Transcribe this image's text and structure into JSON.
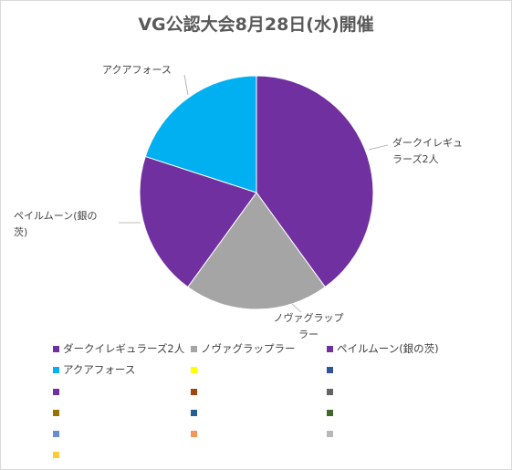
{
  "chart_data": {
    "type": "pie",
    "title": "VG公認大会8月28日(水)開催",
    "slices": [
      {
        "label": "ダークイレギュラーズ2人",
        "value": 2,
        "color": "#7030a0"
      },
      {
        "label": "ノヴァグラップラー",
        "value": 1,
        "color": "#a5a5a5"
      },
      {
        "label": "ペイルムーン(銀の茨)",
        "value": 1,
        "color": "#7030a0"
      },
      {
        "label": "アクアフォース",
        "value": 1,
        "color": "#00b0f0"
      }
    ],
    "data_labels": [
      {
        "lines": [
          "ダークイレギュ",
          "ラーズ2人"
        ]
      },
      {
        "lines": [
          "ノヴァグラップ",
          "ラー"
        ]
      },
      {
        "lines": [
          "ペイルムーン(銀の",
          "茨)"
        ]
      },
      {
        "lines": [
          "アクアフォース"
        ]
      }
    ],
    "legend": {
      "placement": "bottom",
      "entries": [
        {
          "label": "ダークイレギュラーズ2人",
          "color": "#7030a0"
        },
        {
          "label": "ノヴァグラップラー",
          "color": "#a5a5a5"
        },
        {
          "label": "ペイルムーン(銀の茨)",
          "color": "#7030a0"
        },
        {
          "label": "アクアフォース",
          "color": "#00b0f0"
        },
        {
          "label": "",
          "color": "#ffff00"
        },
        {
          "label": "",
          "color": "#2f5597"
        },
        {
          "label": "",
          "color": "#7030a0"
        },
        {
          "label": "",
          "color": "#9e480e"
        },
        {
          "label": "",
          "color": "#636363"
        },
        {
          "label": "",
          "color": "#997300"
        },
        {
          "label": "",
          "color": "#255e91"
        },
        {
          "label": "",
          "color": "#43682b"
        },
        {
          "label": "",
          "color": "#698ed0"
        },
        {
          "label": "",
          "color": "#f1975a"
        },
        {
          "label": "",
          "color": "#b7b7b7"
        },
        {
          "label": "",
          "color": "#ffcd33"
        }
      ]
    }
  }
}
